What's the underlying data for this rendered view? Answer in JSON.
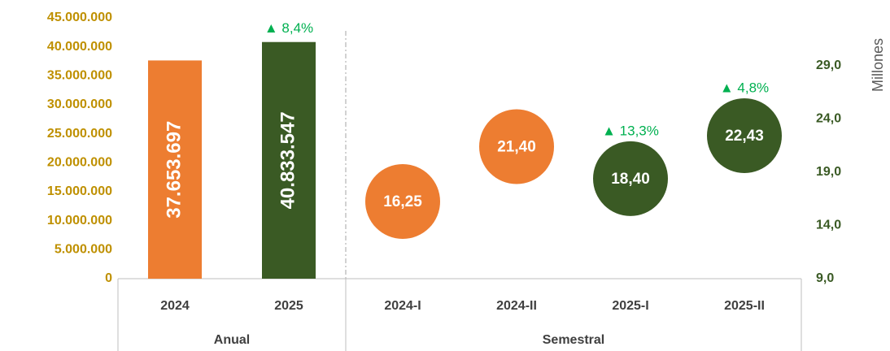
{
  "chart_data": [
    {
      "type": "bar",
      "group": "Anual",
      "categories": [
        "2024",
        "2025"
      ],
      "values": [
        37653697,
        40833547
      ],
      "value_labels": [
        "37.653.697",
        "40.833.547"
      ],
      "colors": [
        "#ED7D31",
        "#3A5A24"
      ],
      "value_annotations": [
        null,
        "▲ 8,4%"
      ],
      "ylim": [
        0,
        45000000
      ],
      "yticks": [
        {
          "value": 0,
          "label": "0"
        },
        {
          "value": 5000000,
          "label": "5.000.000"
        },
        {
          "value": 10000000,
          "label": "10.000.000"
        },
        {
          "value": 15000000,
          "label": "15.000.000"
        },
        {
          "value": 20000000,
          "label": "20.000.000"
        },
        {
          "value": 25000000,
          "label": "25.000.000"
        },
        {
          "value": 30000000,
          "label": "30.000.000"
        },
        {
          "value": 35000000,
          "label": "35.000.000"
        },
        {
          "value": 40000000,
          "label": "40.000.000"
        },
        {
          "value": 45000000,
          "label": "45.000.000"
        }
      ]
    },
    {
      "type": "bubble",
      "group": "Semestral",
      "categories": [
        "2024-I",
        "2024-II",
        "2025-I",
        "2025-II"
      ],
      "values": [
        16.25,
        21.4,
        18.4,
        22.43
      ],
      "value_labels": [
        "16,25",
        "21,40",
        "18,40",
        "22,43"
      ],
      "colors": [
        "#ED7D31",
        "#ED7D31",
        "#3A5A24",
        "#3A5A24"
      ],
      "value_annotations": [
        null,
        null,
        "▲ 13,3%",
        "▲ 4,8%"
      ],
      "axis": "y2",
      "y2_title": "Millones",
      "y2lim": [
        9,
        33.5
      ],
      "y2ticks": [
        {
          "value": 9,
          "label": "9,0"
        },
        {
          "value": 14,
          "label": "14,0"
        },
        {
          "value": 19,
          "label": "19,0"
        },
        {
          "value": 24,
          "label": "24,0"
        },
        {
          "value": 29,
          "label": "29,0"
        }
      ]
    }
  ]
}
